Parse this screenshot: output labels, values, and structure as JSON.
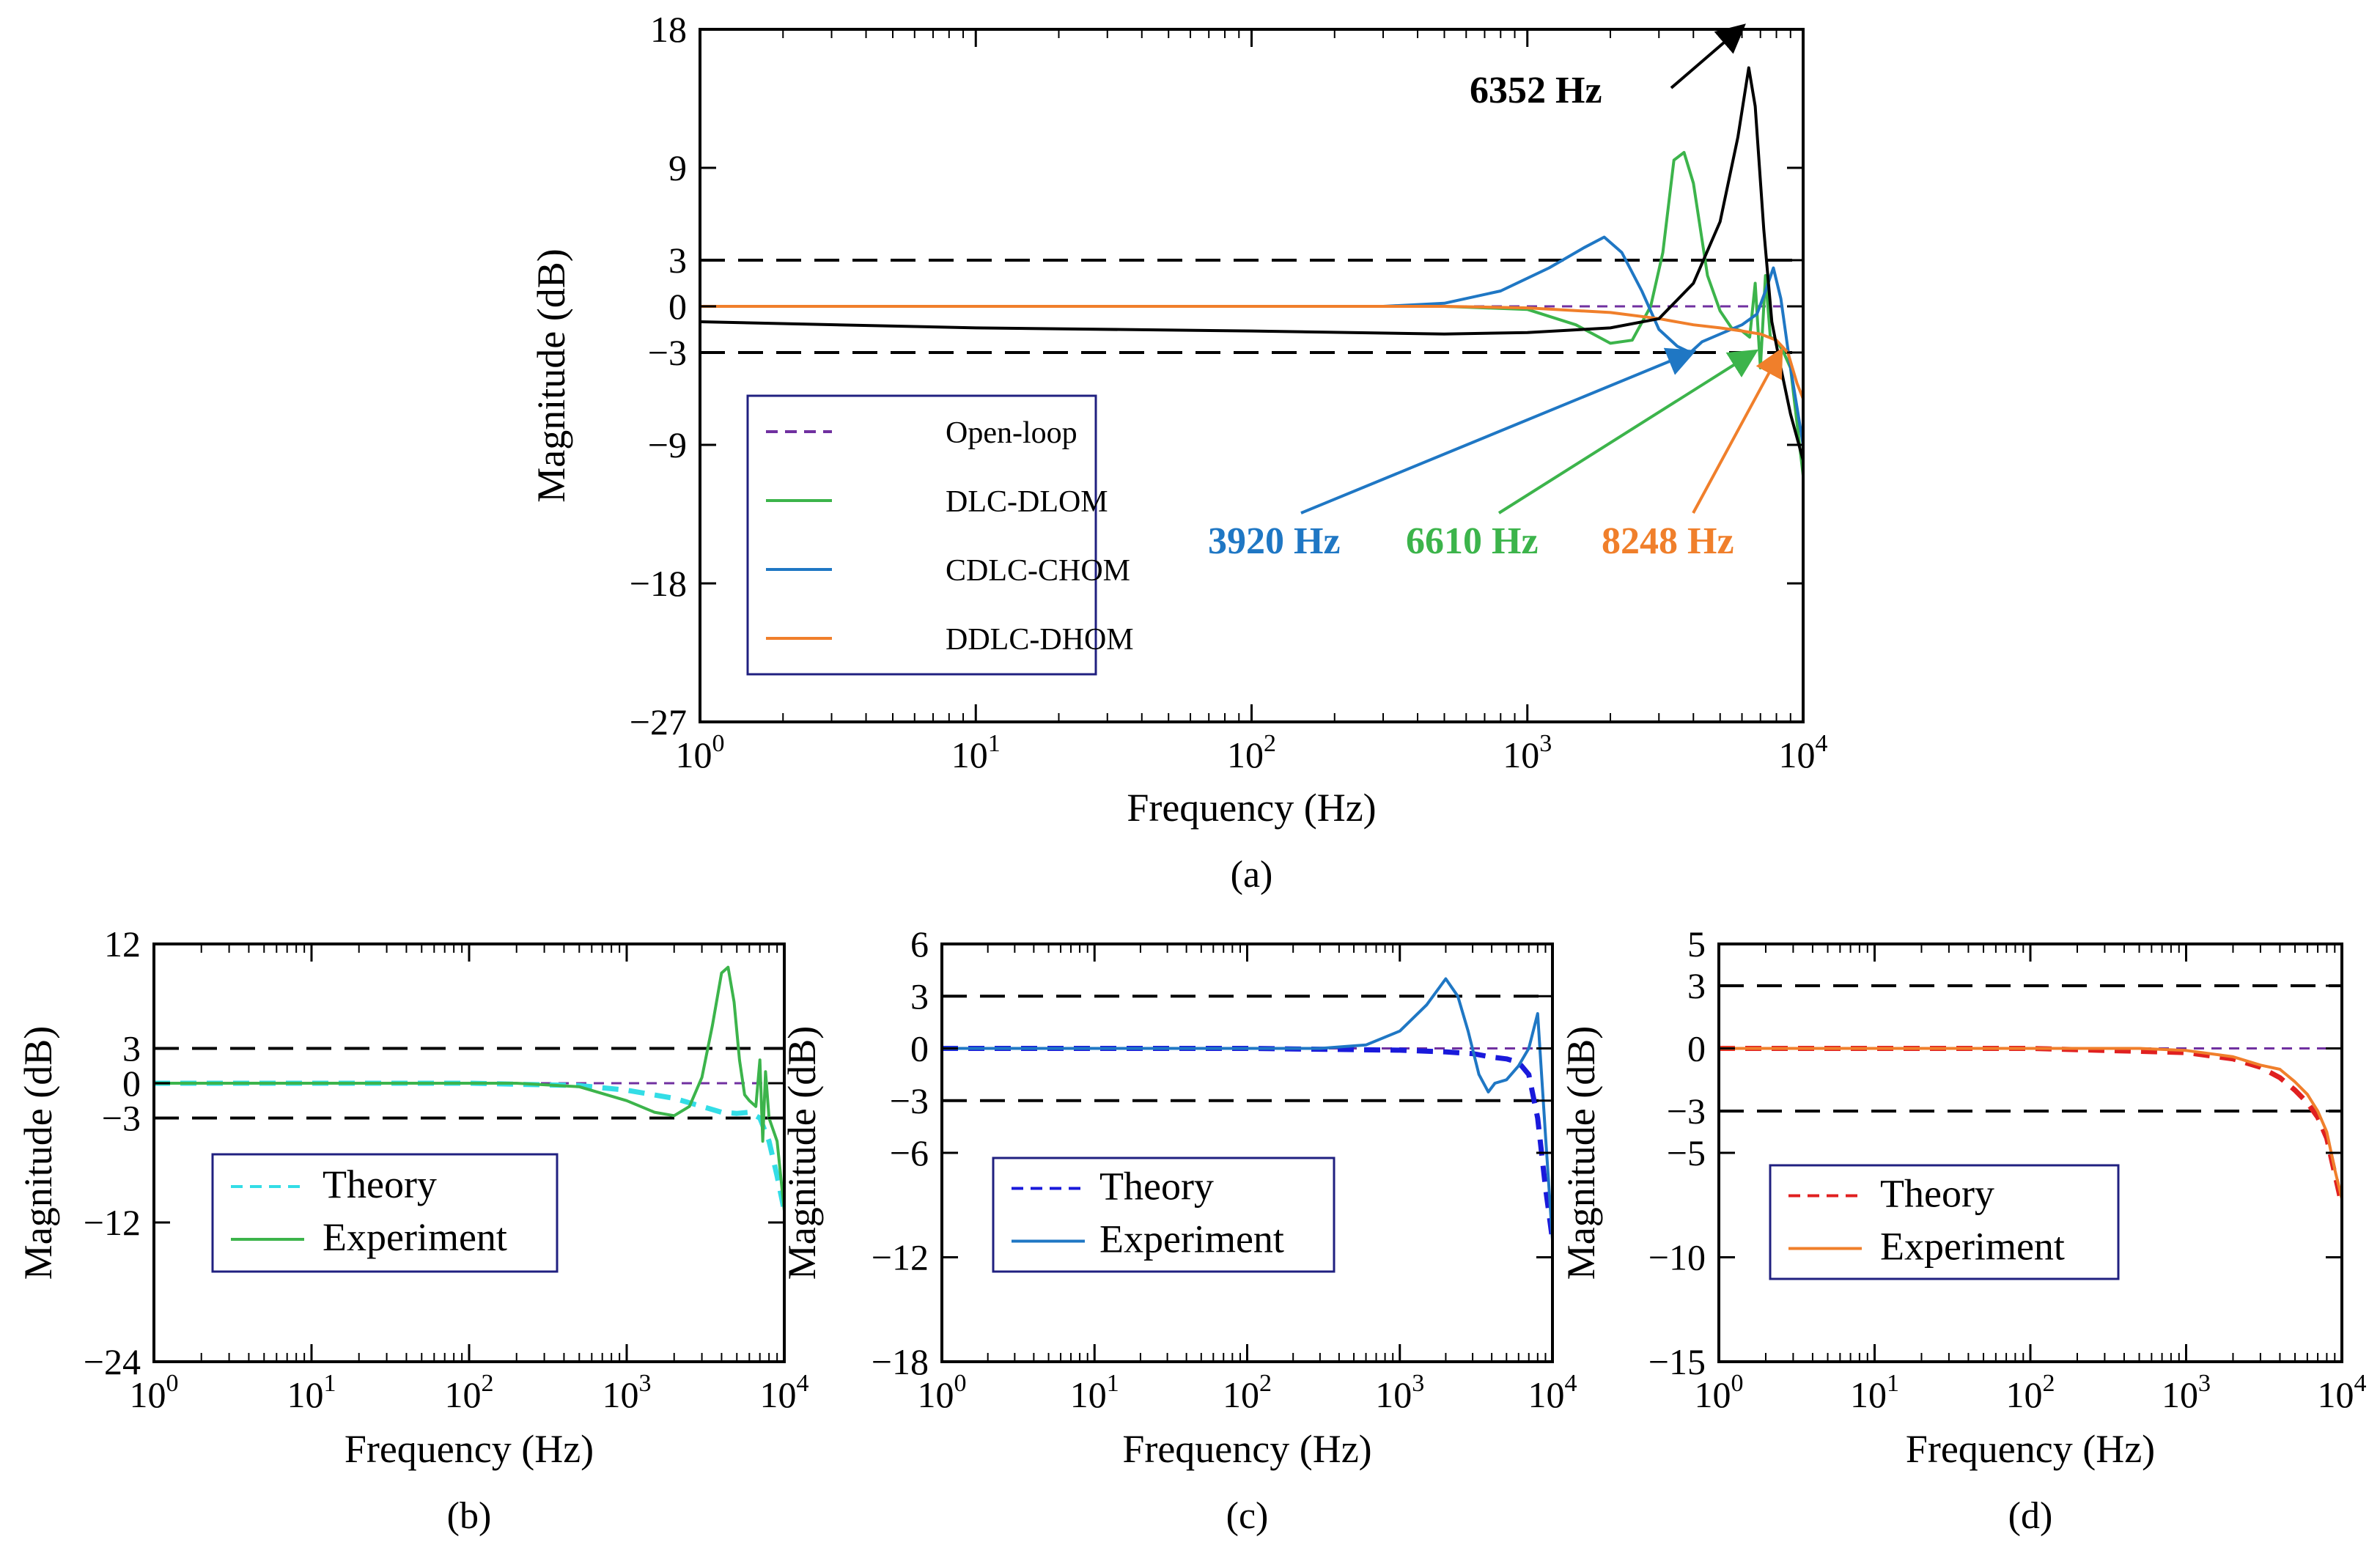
{
  "chart_data": [
    {
      "type": "line",
      "panel": "a",
      "caption": "(a)",
      "xlabel": "Frequency (Hz)",
      "ylabel": "Magnitude (dB)",
      "xscale": "log",
      "xlim": [
        1,
        10000
      ],
      "ylim": [
        -27,
        18
      ],
      "x_ticks": [
        {
          "base": "10",
          "exp": "0"
        },
        {
          "base": "10",
          "exp": "1"
        },
        {
          "base": "10",
          "exp": "2"
        },
        {
          "base": "10",
          "exp": "3"
        },
        {
          "base": "10",
          "exp": "4"
        }
      ],
      "y_ticks": [
        {
          "value": 18,
          "label": "18"
        },
        {
          "value": 9,
          "label": "9"
        },
        {
          "value": 3,
          "label": "3"
        },
        {
          "value": 0,
          "label": "0"
        },
        {
          "value": -3,
          "label": "−3"
        },
        {
          "value": -9,
          "label": "−9"
        },
        {
          "value": -18,
          "label": "−18"
        },
        {
          "value": -27,
          "label": "−27"
        }
      ],
      "reference_lines": [
        3,
        -3
      ],
      "legend": [
        "Open-loop",
        "DLC-DLOM",
        "CDLC-CHOM",
        "DDLC-DHOM"
      ],
      "legend_position": "lower-left",
      "series": [
        {
          "name": "Open-loop",
          "color": "#7030a0",
          "style": "dashed",
          "points": [
            [
              1,
              0
            ],
            [
              10000,
              0
            ]
          ]
        },
        {
          "name": "DLC-DLOM",
          "color": "#3cb44b",
          "style": "solid",
          "points": [
            [
              1,
              0
            ],
            [
              100,
              0
            ],
            [
              500,
              0
            ],
            [
              1000,
              -0.2
            ],
            [
              1500,
              -1.2
            ],
            [
              2000,
              -2.4
            ],
            [
              2400,
              -2.2
            ],
            [
              2800,
              0
            ],
            [
              3100,
              3.5
            ],
            [
              3400,
              9.5
            ],
            [
              3700,
              10
            ],
            [
              4000,
              8
            ],
            [
              4500,
              2
            ],
            [
              5000,
              -0.3
            ],
            [
              5500,
              -1.4
            ],
            [
              6000,
              -1.6
            ],
            [
              6400,
              -2
            ],
            [
              6700,
              1.5
            ],
            [
              7000,
              -4
            ],
            [
              7300,
              2
            ],
            [
              7600,
              -2
            ],
            [
              8000,
              -2.2
            ],
            [
              8500,
              -3
            ],
            [
              9000,
              -4
            ],
            [
              10000,
              -11
            ]
          ]
        },
        {
          "name": "CDLC-CHOM",
          "color": "#1f77c4",
          "style": "solid",
          "points": [
            [
              1,
              0
            ],
            [
              100,
              0
            ],
            [
              300,
              0
            ],
            [
              500,
              0.2
            ],
            [
              800,
              1
            ],
            [
              1200,
              2.5
            ],
            [
              1600,
              3.8
            ],
            [
              1900,
              4.5
            ],
            [
              2200,
              3.5
            ],
            [
              2600,
              1
            ],
            [
              3000,
              -1.5
            ],
            [
              3500,
              -2.6
            ],
            [
              3900,
              -3
            ],
            [
              4300,
              -2.3
            ],
            [
              5000,
              -1.8
            ],
            [
              6000,
              -1.2
            ],
            [
              6800,
              -0.5
            ],
            [
              7300,
              1
            ],
            [
              7800,
              2.5
            ],
            [
              8300,
              0.5
            ],
            [
              9000,
              -4
            ],
            [
              10000,
              -9
            ]
          ]
        },
        {
          "name": "DDLC-DHOM",
          "color": "#f07f2b",
          "style": "solid",
          "points": [
            [
              1,
              0
            ],
            [
              100,
              0
            ],
            [
              500,
              0
            ],
            [
              1000,
              -0.1
            ],
            [
              2000,
              -0.4
            ],
            [
              3000,
              -0.8
            ],
            [
              4000,
              -1.2
            ],
            [
              5000,
              -1.4
            ],
            [
              6000,
              -1.6
            ],
            [
              7000,
              -1.8
            ],
            [
              8000,
              -2.2
            ],
            [
              8800,
              -3
            ],
            [
              9500,
              -5
            ],
            [
              10000,
              -6
            ]
          ]
        },
        {
          "name": "black",
          "color": "#000000",
          "style": "solid",
          "points": [
            [
              1,
              -1
            ],
            [
              10,
              -1.4
            ],
            [
              100,
              -1.6
            ],
            [
              500,
              -1.8
            ],
            [
              1000,
              -1.7
            ],
            [
              2000,
              -1.4
            ],
            [
              3000,
              -0.8
            ],
            [
              4000,
              1.5
            ],
            [
              5000,
              5.5
            ],
            [
              5800,
              11
            ],
            [
              6352,
              15.5
            ],
            [
              6700,
              13
            ],
            [
              7200,
              5
            ],
            [
              7700,
              -1
            ],
            [
              8300,
              -4
            ],
            [
              9000,
              -7
            ],
            [
              10000,
              -10
            ]
          ]
        }
      ],
      "annotations": [
        {
          "text": "6352 Hz",
          "color": "#000000",
          "x": 6352,
          "y": 15.5
        },
        {
          "text": "3920 Hz",
          "color": "#1f77c4",
          "x": 3920,
          "y": -3
        },
        {
          "text": "6610 Hz",
          "color": "#3cb44b",
          "x": 6610,
          "y": -3
        },
        {
          "text": "8248 Hz",
          "color": "#f07f2b",
          "x": 8248,
          "y": -3
        }
      ]
    },
    {
      "type": "line",
      "panel": "b",
      "caption": "(b)",
      "xlabel": "Frequency (Hz)",
      "ylabel": "Magnitude (dB)",
      "xscale": "log",
      "xlim": [
        1,
        10000
      ],
      "ylim": [
        -24,
        12
      ],
      "x_ticks": [
        {
          "base": "10",
          "exp": "0"
        },
        {
          "base": "10",
          "exp": "1"
        },
        {
          "base": "10",
          "exp": "2"
        },
        {
          "base": "10",
          "exp": "3"
        },
        {
          "base": "10",
          "exp": "4"
        }
      ],
      "y_ticks": [
        {
          "value": 12,
          "label": "12"
        },
        {
          "value": 3,
          "label": "3"
        },
        {
          "value": 0,
          "label": "0"
        },
        {
          "value": -3,
          "label": "−3"
        },
        {
          "value": -12,
          "label": "−12"
        },
        {
          "value": -24,
          "label": "−24"
        }
      ],
      "reference_lines": [
        3,
        -3
      ],
      "legend": [
        "Theory",
        "Experiment"
      ],
      "legend_position": "lower-left",
      "series": [
        {
          "name": "open-loop",
          "color": "#7030a0",
          "style": "dashed",
          "points": [
            [
              1,
              0
            ],
            [
              10000,
              0
            ]
          ]
        },
        {
          "name": "Theory",
          "color": "#33dde6",
          "style": "dashed",
          "points": [
            [
              1,
              0
            ],
            [
              100,
              0
            ],
            [
              500,
              -0.2
            ],
            [
              1000,
              -0.6
            ],
            [
              2000,
              -1.3
            ],
            [
              3000,
              -2
            ],
            [
              4000,
              -2.5
            ],
            [
              5000,
              -2.6
            ],
            [
              6000,
              -2.5
            ],
            [
              7000,
              -3
            ],
            [
              8000,
              -5
            ],
            [
              9000,
              -8
            ],
            [
              10000,
              -11
            ]
          ]
        },
        {
          "name": "Experiment",
          "color": "#3cb44b",
          "style": "solid",
          "points": [
            [
              1,
              0
            ],
            [
              200,
              0
            ],
            [
              500,
              -0.3
            ],
            [
              1000,
              -1.5
            ],
            [
              1500,
              -2.5
            ],
            [
              2000,
              -2.8
            ],
            [
              2500,
              -2
            ],
            [
              3000,
              0.5
            ],
            [
              3500,
              5
            ],
            [
              4000,
              9.5
            ],
            [
              4400,
              10
            ],
            [
              4800,
              7
            ],
            [
              5200,
              2
            ],
            [
              5600,
              -1
            ],
            [
              6000,
              -1.5
            ],
            [
              6600,
              -2
            ],
            [
              7000,
              2
            ],
            [
              7300,
              -5
            ],
            [
              7600,
              1
            ],
            [
              8000,
              -3
            ],
            [
              9000,
              -5
            ],
            [
              10000,
              -11
            ]
          ]
        }
      ]
    },
    {
      "type": "line",
      "panel": "c",
      "caption": "(c)",
      "xlabel": "Frequency (Hz)",
      "ylabel": "Magnitude (dB)",
      "xscale": "log",
      "xlim": [
        1,
        10000
      ],
      "ylim": [
        -18,
        6
      ],
      "x_ticks": [
        {
          "base": "10",
          "exp": "0"
        },
        {
          "base": "10",
          "exp": "1"
        },
        {
          "base": "10",
          "exp": "2"
        },
        {
          "base": "10",
          "exp": "3"
        },
        {
          "base": "10",
          "exp": "4"
        }
      ],
      "y_ticks": [
        {
          "value": 6,
          "label": "6"
        },
        {
          "value": 3,
          "label": "3"
        },
        {
          "value": 0,
          "label": "0"
        },
        {
          "value": -3,
          "label": "−3"
        },
        {
          "value": -6,
          "label": "−6"
        },
        {
          "value": -12,
          "label": "−12"
        },
        {
          "value": -18,
          "label": "−18"
        }
      ],
      "reference_lines": [
        3,
        -3
      ],
      "legend": [
        "Theory",
        "Experiment"
      ],
      "legend_position": "lower-left",
      "series": [
        {
          "name": "open-loop",
          "color": "#7030a0",
          "style": "dashed",
          "points": [
            [
              1,
              0
            ],
            [
              10000,
              0
            ]
          ]
        },
        {
          "name": "Theory",
          "color": "#1a1adb",
          "style": "dashed",
          "points": [
            [
              1,
              0
            ],
            [
              100,
              0
            ],
            [
              1000,
              -0.1
            ],
            [
              2000,
              -0.2
            ],
            [
              3000,
              -0.3
            ],
            [
              4000,
              -0.5
            ],
            [
              5000,
              -0.6
            ],
            [
              6000,
              -0.8
            ],
            [
              7000,
              -1.5
            ],
            [
              8000,
              -4
            ],
            [
              9000,
              -8
            ],
            [
              10000,
              -11
            ]
          ]
        },
        {
          "name": "Experiment",
          "color": "#1f77c4",
          "style": "solid",
          "points": [
            [
              1,
              0
            ],
            [
              300,
              0
            ],
            [
              600,
              0.2
            ],
            [
              1000,
              1
            ],
            [
              1500,
              2.5
            ],
            [
              2000,
              4
            ],
            [
              2400,
              3
            ],
            [
              2800,
              1
            ],
            [
              3300,
              -1.5
            ],
            [
              3800,
              -2.5
            ],
            [
              4200,
              -2
            ],
            [
              5000,
              -1.8
            ],
            [
              6000,
              -1
            ],
            [
              7000,
              0
            ],
            [
              8000,
              2
            ],
            [
              9000,
              -5
            ],
            [
              10000,
              -11
            ]
          ]
        }
      ]
    },
    {
      "type": "line",
      "panel": "d",
      "caption": "(d)",
      "xlabel": "Frequency (Hz)",
      "ylabel": "Magnitude (dB)",
      "xscale": "log",
      "xlim": [
        1,
        10000
      ],
      "ylim": [
        -15,
        5
      ],
      "x_ticks": [
        {
          "base": "10",
          "exp": "0"
        },
        {
          "base": "10",
          "exp": "1"
        },
        {
          "base": "10",
          "exp": "2"
        },
        {
          "base": "10",
          "exp": "3"
        },
        {
          "base": "10",
          "exp": "4"
        }
      ],
      "y_ticks": [
        {
          "value": 5,
          "label": "5"
        },
        {
          "value": 3,
          "label": "3"
        },
        {
          "value": 0,
          "label": "0"
        },
        {
          "value": -3,
          "label": "−3"
        },
        {
          "value": -5,
          "label": "−5"
        },
        {
          "value": -10,
          "label": "−10"
        },
        {
          "value": -15,
          "label": "−15"
        }
      ],
      "reference_lines": [
        3,
        -3
      ],
      "legend": [
        "Theory",
        "Experiment"
      ],
      "legend_position": "lower-left",
      "series": [
        {
          "name": "open-loop",
          "color": "#7030a0",
          "style": "dashed",
          "points": [
            [
              1,
              0
            ],
            [
              10000,
              0
            ]
          ]
        },
        {
          "name": "Theory",
          "color": "#e02020",
          "style": "dashed",
          "points": [
            [
              1,
              0
            ],
            [
              100,
              0
            ],
            [
              1000,
              -0.2
            ],
            [
              2000,
              -0.5
            ],
            [
              3000,
              -0.9
            ],
            [
              4000,
              -1.4
            ],
            [
              5000,
              -2
            ],
            [
              6000,
              -2.6
            ],
            [
              7000,
              -3.3
            ],
            [
              8000,
              -4.3
            ],
            [
              9000,
              -6
            ],
            [
              10000,
              -7.5
            ]
          ]
        },
        {
          "name": "Experiment",
          "color": "#f07f2b",
          "style": "solid",
          "points": [
            [
              1,
              0
            ],
            [
              500,
              0
            ],
            [
              1000,
              -0.1
            ],
            [
              2000,
              -0.4
            ],
            [
              3000,
              -0.8
            ],
            [
              4000,
              -1
            ],
            [
              5000,
              -1.6
            ],
            [
              6000,
              -2.2
            ],
            [
              7000,
              -3
            ],
            [
              8000,
              -4
            ],
            [
              9000,
              -5.8
            ],
            [
              10000,
              -7.2
            ]
          ]
        }
      ]
    }
  ]
}
